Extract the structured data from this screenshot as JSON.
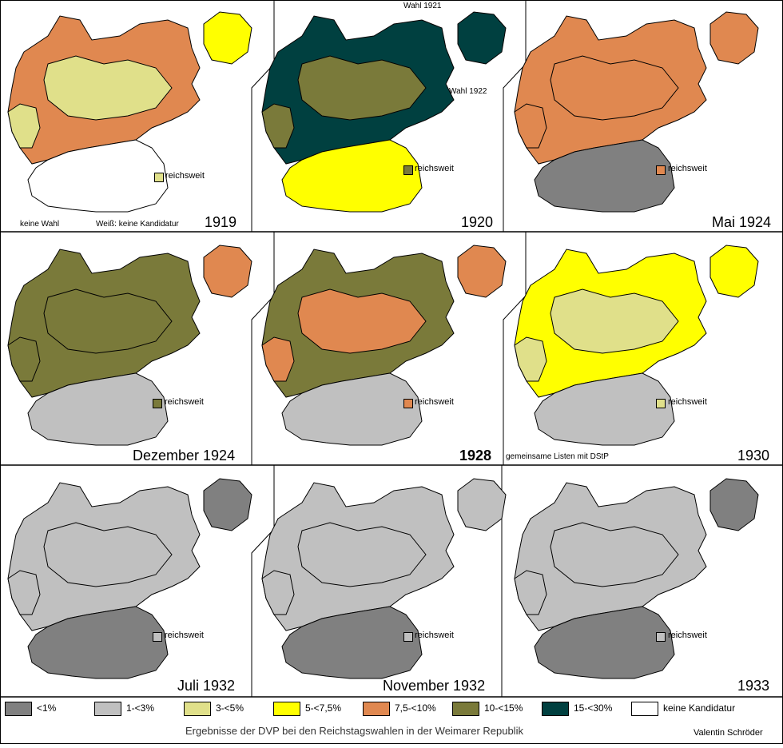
{
  "title": "Ergebnisse der DVP bei den Reichstagswahlen in der Weimarer Republik",
  "author": "Valentin Schröder",
  "colors": {
    "lt1": "#808080",
    "1to3": "#c0c0c0",
    "3to5": "#e0e08a",
    "5to7_5": "#ffff00",
    "7_5to10": "#e08850",
    "10to15": "#7a7a3a",
    "15to30": "#004040",
    "none": "#ffffff"
  },
  "legend": [
    {
      "key": "lt1",
      "label": "<1%"
    },
    {
      "key": "1to3",
      "label": "1-<3%"
    },
    {
      "key": "3to5",
      "label": "3-<5%"
    },
    {
      "key": "5to7_5",
      "label": "5-<7,5%"
    },
    {
      "key": "7_5to10",
      "label": "7,5-<10%"
    },
    {
      "key": "10to15",
      "label": "10-<15%"
    },
    {
      "key": "15to30",
      "label": "15-<30%"
    },
    {
      "key": "none",
      "label": "keine Kandidatur"
    }
  ],
  "panels": [
    {
      "year": "1919",
      "nationwide_label": "reichsweit",
      "nationwide": "3to5",
      "east_prussia": "5to7_5",
      "south": "none",
      "main": "7_5to10",
      "notes": [
        "keine Wahl",
        "Weiß: keine Kandidatur"
      ]
    },
    {
      "year": "1920",
      "nationwide_label": "reichsweit",
      "nationwide": "10to15",
      "east_prussia": "15to30",
      "south": "5to7_5",
      "main": "15to30",
      "notes": [
        "Wahl 1921",
        "Wahl 1922"
      ]
    },
    {
      "year": "Mai 1924",
      "nationwide_label": "reichsweit",
      "nationwide": "7_5to10",
      "east_prussia": "7_5to10",
      "south": "lt1",
      "main": "7_5to10",
      "notes": []
    },
    {
      "year": "Dezember 1924",
      "nationwide_label": "reichsweit",
      "nationwide": "10to15",
      "east_prussia": "7_5to10",
      "south": "1to3",
      "main": "10to15",
      "notes": []
    },
    {
      "year": "1928",
      "nationwide_label": "reichsweit",
      "nationwide": "7_5to10",
      "east_prussia": "7_5to10",
      "south": "1to3",
      "main": "10to15",
      "notes": []
    },
    {
      "year": "1930",
      "nationwide_label": "reichsweit",
      "nationwide": "3to5",
      "east_prussia": "5to7_5",
      "south": "1to3",
      "main": "5to7_5",
      "notes": [
        "gemeinsame Listen mit DStP"
      ]
    },
    {
      "year": "Juli 1932",
      "nationwide_label": "reichsweit",
      "nationwide": "1to3",
      "east_prussia": "lt1",
      "south": "lt1",
      "main": "1to3",
      "notes": []
    },
    {
      "year": "November 1932",
      "nationwide_label": "reichsweit",
      "nationwide": "1to3",
      "east_prussia": "1to3",
      "south": "lt1",
      "main": "1to3",
      "notes": []
    },
    {
      "year": "1933",
      "nationwide_label": "reichsweit",
      "nationwide": "1to3",
      "east_prussia": "lt1",
      "south": "lt1",
      "main": "1to3",
      "notes": []
    }
  ]
}
